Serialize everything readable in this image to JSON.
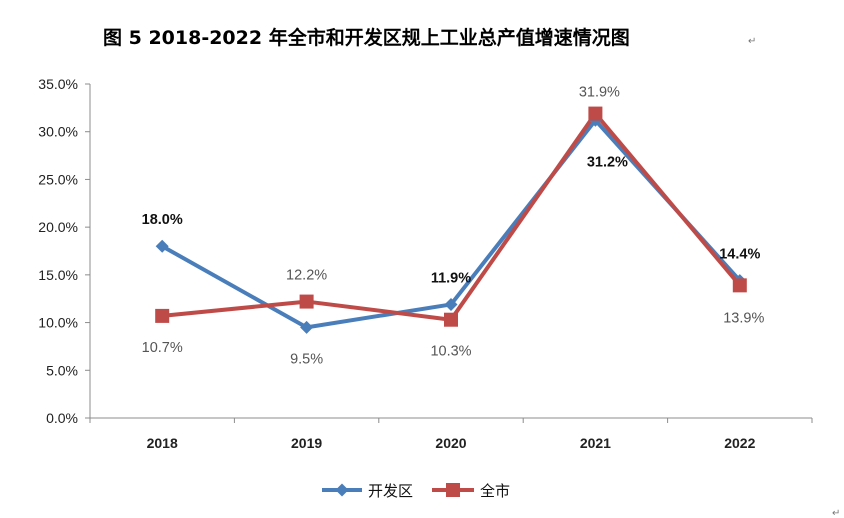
{
  "chart_data": {
    "type": "line",
    "title": "图 5      2018-2022 年全市和开发区规上工业总产值增速情况图",
    "categories": [
      "2018",
      "2019",
      "2020",
      "2021",
      "2022"
    ],
    "ylim": [
      0,
      35
    ],
    "yticks": [
      0,
      5,
      10,
      15,
      20,
      25,
      30,
      35
    ],
    "ytick_labels": [
      "0.0%",
      "5.0%",
      "10.0%",
      "15.0%",
      "20.0%",
      "25.0%",
      "30.0%",
      "35.0%"
    ],
    "grid": false,
    "legend_position": "bottom",
    "series": [
      {
        "name": "开发区",
        "color": "#4A7EBB",
        "marker": "diamond",
        "values": [
          18.0,
          9.5,
          11.9,
          31.2,
          14.4
        ],
        "labels": [
          "18.0%",
          "9.5%",
          "11.9%",
          "31.2%",
          "14.4%"
        ]
      },
      {
        "name": "全市",
        "color": "#BE4B48",
        "marker": "square",
        "values": [
          10.7,
          12.2,
          10.3,
          31.9,
          13.9
        ],
        "labels": [
          "10.7%",
          "12.2%",
          "10.3%",
          "31.9%",
          "13.9%"
        ]
      }
    ]
  },
  "marks": {
    "return_symbol": "↵"
  }
}
